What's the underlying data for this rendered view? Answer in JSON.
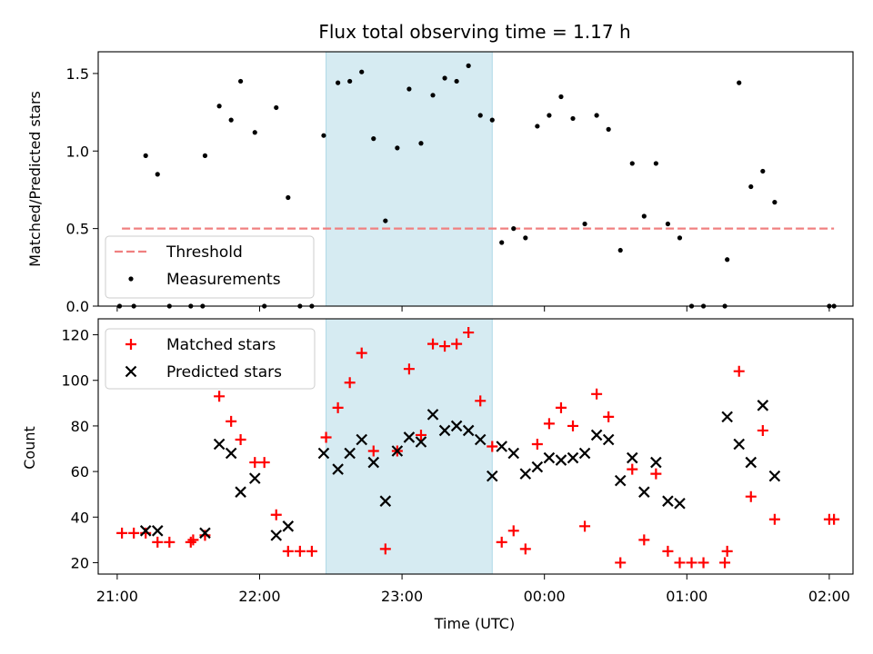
{
  "chart_data": [
    {
      "panel": "top",
      "type": "scatter",
      "title": "Flux total observing time = 1.17 h",
      "xlabel": "",
      "ylabel": "Matched/Predicted stars",
      "ylim": [
        0,
        1.64
      ],
      "yticks": [
        0.0,
        0.5,
        1.0,
        1.5
      ],
      "ytick_labels": [
        "0.0",
        "0.5",
        "1.0",
        "1.5"
      ],
      "shaded_span": [
        "22:28",
        "23:38"
      ],
      "legend_position": "lower-left",
      "series": [
        {
          "name": "Threshold",
          "style": "dashed-line",
          "color": "#f08080",
          "points": [
            [
              "21:02",
              0.5
            ],
            [
              "02:02",
              0.5
            ]
          ]
        },
        {
          "name": "Measurements",
          "style": "dot",
          "color": "#000000",
          "points": [
            [
              "21:01",
              0.0
            ],
            [
              "21:07",
              0.0
            ],
            [
              "21:12",
              0.97
            ],
            [
              "21:17",
              0.85
            ],
            [
              "21:22",
              0.0
            ],
            [
              "21:31",
              0.0
            ],
            [
              "21:36",
              0.0
            ],
            [
              "21:37",
              0.97
            ],
            [
              "21:43",
              1.29
            ],
            [
              "21:48",
              1.2
            ],
            [
              "21:52",
              1.45
            ],
            [
              "21:58",
              1.12
            ],
            [
              "22:02",
              0.0
            ],
            [
              "22:07",
              1.28
            ],
            [
              "22:12",
              0.7
            ],
            [
              "22:17",
              0.0
            ],
            [
              "22:22",
              0.0
            ],
            [
              "22:27",
              1.1
            ],
            [
              "22:33",
              1.44
            ],
            [
              "22:38",
              1.45
            ],
            [
              "22:43",
              1.51
            ],
            [
              "22:48",
              1.08
            ],
            [
              "22:53",
              0.55
            ],
            [
              "22:58",
              1.02
            ],
            [
              "23:03",
              1.4
            ],
            [
              "23:08",
              1.05
            ],
            [
              "23:13",
              1.36
            ],
            [
              "23:18",
              1.47
            ],
            [
              "23:23",
              1.45
            ],
            [
              "23:28",
              1.55
            ],
            [
              "23:33",
              1.23
            ],
            [
              "23:38",
              1.2
            ],
            [
              "23:42",
              0.41
            ],
            [
              "23:47",
              0.5
            ],
            [
              "23:52",
              0.44
            ],
            [
              "23:57",
              1.16
            ],
            [
              "00:02",
              1.23
            ],
            [
              "00:07",
              1.35
            ],
            [
              "00:12",
              1.21
            ],
            [
              "00:17",
              0.53
            ],
            [
              "00:22",
              1.23
            ],
            [
              "00:27",
              1.14
            ],
            [
              "00:32",
              0.36
            ],
            [
              "00:37",
              0.92
            ],
            [
              "00:42",
              0.58
            ],
            [
              "00:47",
              0.92
            ],
            [
              "00:52",
              0.53
            ],
            [
              "00:57",
              0.44
            ],
            [
              "01:02",
              0.0
            ],
            [
              "01:07",
              0.0
            ],
            [
              "01:16",
              0.0
            ],
            [
              "01:17",
              0.3
            ],
            [
              "01:22",
              1.44
            ],
            [
              "01:27",
              0.77
            ],
            [
              "01:32",
              0.87
            ],
            [
              "01:37",
              0.67
            ],
            [
              "02:00",
              0.0
            ],
            [
              "02:02",
              0.0
            ]
          ]
        }
      ]
    },
    {
      "panel": "bottom",
      "type": "scatter",
      "xlabel": "Time (UTC)",
      "ylabel": "Count",
      "ylim": [
        15,
        127
      ],
      "yticks": [
        20,
        40,
        60,
        80,
        100,
        120
      ],
      "ytick_labels": [
        "20",
        "40",
        "60",
        "80",
        "100",
        "120"
      ],
      "xticks": [
        "21:00",
        "22:00",
        "23:00",
        "00:00",
        "01:00",
        "02:00"
      ],
      "shaded_span": [
        "22:28",
        "23:38"
      ],
      "legend_position": "upper-left",
      "series": [
        {
          "name": "Matched stars",
          "marker": "plus",
          "color": "#ff0000",
          "points": [
            [
              "21:02",
              33
            ],
            [
              "21:07",
              33
            ],
            [
              "21:12",
              33
            ],
            [
              "21:17",
              29
            ],
            [
              "21:22",
              29
            ],
            [
              "21:31",
              29
            ],
            [
              "21:32",
              30
            ],
            [
              "21:37",
              32
            ],
            [
              "21:43",
              93
            ],
            [
              "21:48",
              82
            ],
            [
              "21:52",
              74
            ],
            [
              "21:58",
              64
            ],
            [
              "22:02",
              64
            ],
            [
              "22:07",
              41
            ],
            [
              "22:12",
              25
            ],
            [
              "22:17",
              25
            ],
            [
              "22:22",
              25
            ],
            [
              "22:28",
              75
            ],
            [
              "22:33",
              88
            ],
            [
              "22:38",
              99
            ],
            [
              "22:43",
              112
            ],
            [
              "22:48",
              69
            ],
            [
              "22:53",
              26
            ],
            [
              "22:58",
              69
            ],
            [
              "23:03",
              105
            ],
            [
              "23:08",
              76
            ],
            [
              "23:13",
              116
            ],
            [
              "23:18",
              115
            ],
            [
              "23:23",
              116
            ],
            [
              "23:28",
              121
            ],
            [
              "23:33",
              91
            ],
            [
              "23:38",
              71
            ],
            [
              "23:42",
              29
            ],
            [
              "23:47",
              34
            ],
            [
              "23:52",
              26
            ],
            [
              "23:57",
              72
            ],
            [
              "00:02",
              81
            ],
            [
              "00:07",
              88
            ],
            [
              "00:12",
              80
            ],
            [
              "00:17",
              36
            ],
            [
              "00:22",
              94
            ],
            [
              "00:27",
              84
            ],
            [
              "00:32",
              20
            ],
            [
              "00:37",
              61
            ],
            [
              "00:42",
              30
            ],
            [
              "00:47",
              59
            ],
            [
              "00:52",
              25
            ],
            [
              "00:57",
              20
            ],
            [
              "01:02",
              20
            ],
            [
              "01:07",
              20
            ],
            [
              "01:16",
              20
            ],
            [
              "01:17",
              25
            ],
            [
              "01:22",
              104
            ],
            [
              "01:27",
              49
            ],
            [
              "01:32",
              78
            ],
            [
              "01:37",
              39
            ],
            [
              "02:00",
              39
            ],
            [
              "02:02",
              39
            ]
          ]
        },
        {
          "name": "Predicted stars",
          "marker": "x",
          "color": "#000000",
          "points": [
            [
              "21:12",
              34
            ],
            [
              "21:17",
              34
            ],
            [
              "21:37",
              33
            ],
            [
              "21:43",
              72
            ],
            [
              "21:48",
              68
            ],
            [
              "21:52",
              51
            ],
            [
              "21:58",
              57
            ],
            [
              "22:07",
              32
            ],
            [
              "22:12",
              36
            ],
            [
              "22:27",
              68
            ],
            [
              "22:33",
              61
            ],
            [
              "22:38",
              68
            ],
            [
              "22:43",
              74
            ],
            [
              "22:48",
              64
            ],
            [
              "22:53",
              47
            ],
            [
              "22:58",
              69
            ],
            [
              "23:03",
              75
            ],
            [
              "23:08",
              73
            ],
            [
              "23:13",
              85
            ],
            [
              "23:18",
              78
            ],
            [
              "23:23",
              80
            ],
            [
              "23:28",
              78
            ],
            [
              "23:33",
              74
            ],
            [
              "23:38",
              58
            ],
            [
              "23:42",
              71
            ],
            [
              "23:47",
              68
            ],
            [
              "23:52",
              59
            ],
            [
              "23:57",
              62
            ],
            [
              "00:02",
              66
            ],
            [
              "00:07",
              65
            ],
            [
              "00:12",
              66
            ],
            [
              "00:17",
              68
            ],
            [
              "00:22",
              76
            ],
            [
              "00:27",
              74
            ],
            [
              "00:32",
              56
            ],
            [
              "00:37",
              66
            ],
            [
              "00:42",
              51
            ],
            [
              "00:47",
              64
            ],
            [
              "00:52",
              47
            ],
            [
              "00:57",
              46
            ],
            [
              "01:17",
              84
            ],
            [
              "01:22",
              72
            ],
            [
              "01:27",
              64
            ],
            [
              "01:32",
              89
            ],
            [
              "01:37",
              58
            ]
          ]
        }
      ]
    }
  ]
}
